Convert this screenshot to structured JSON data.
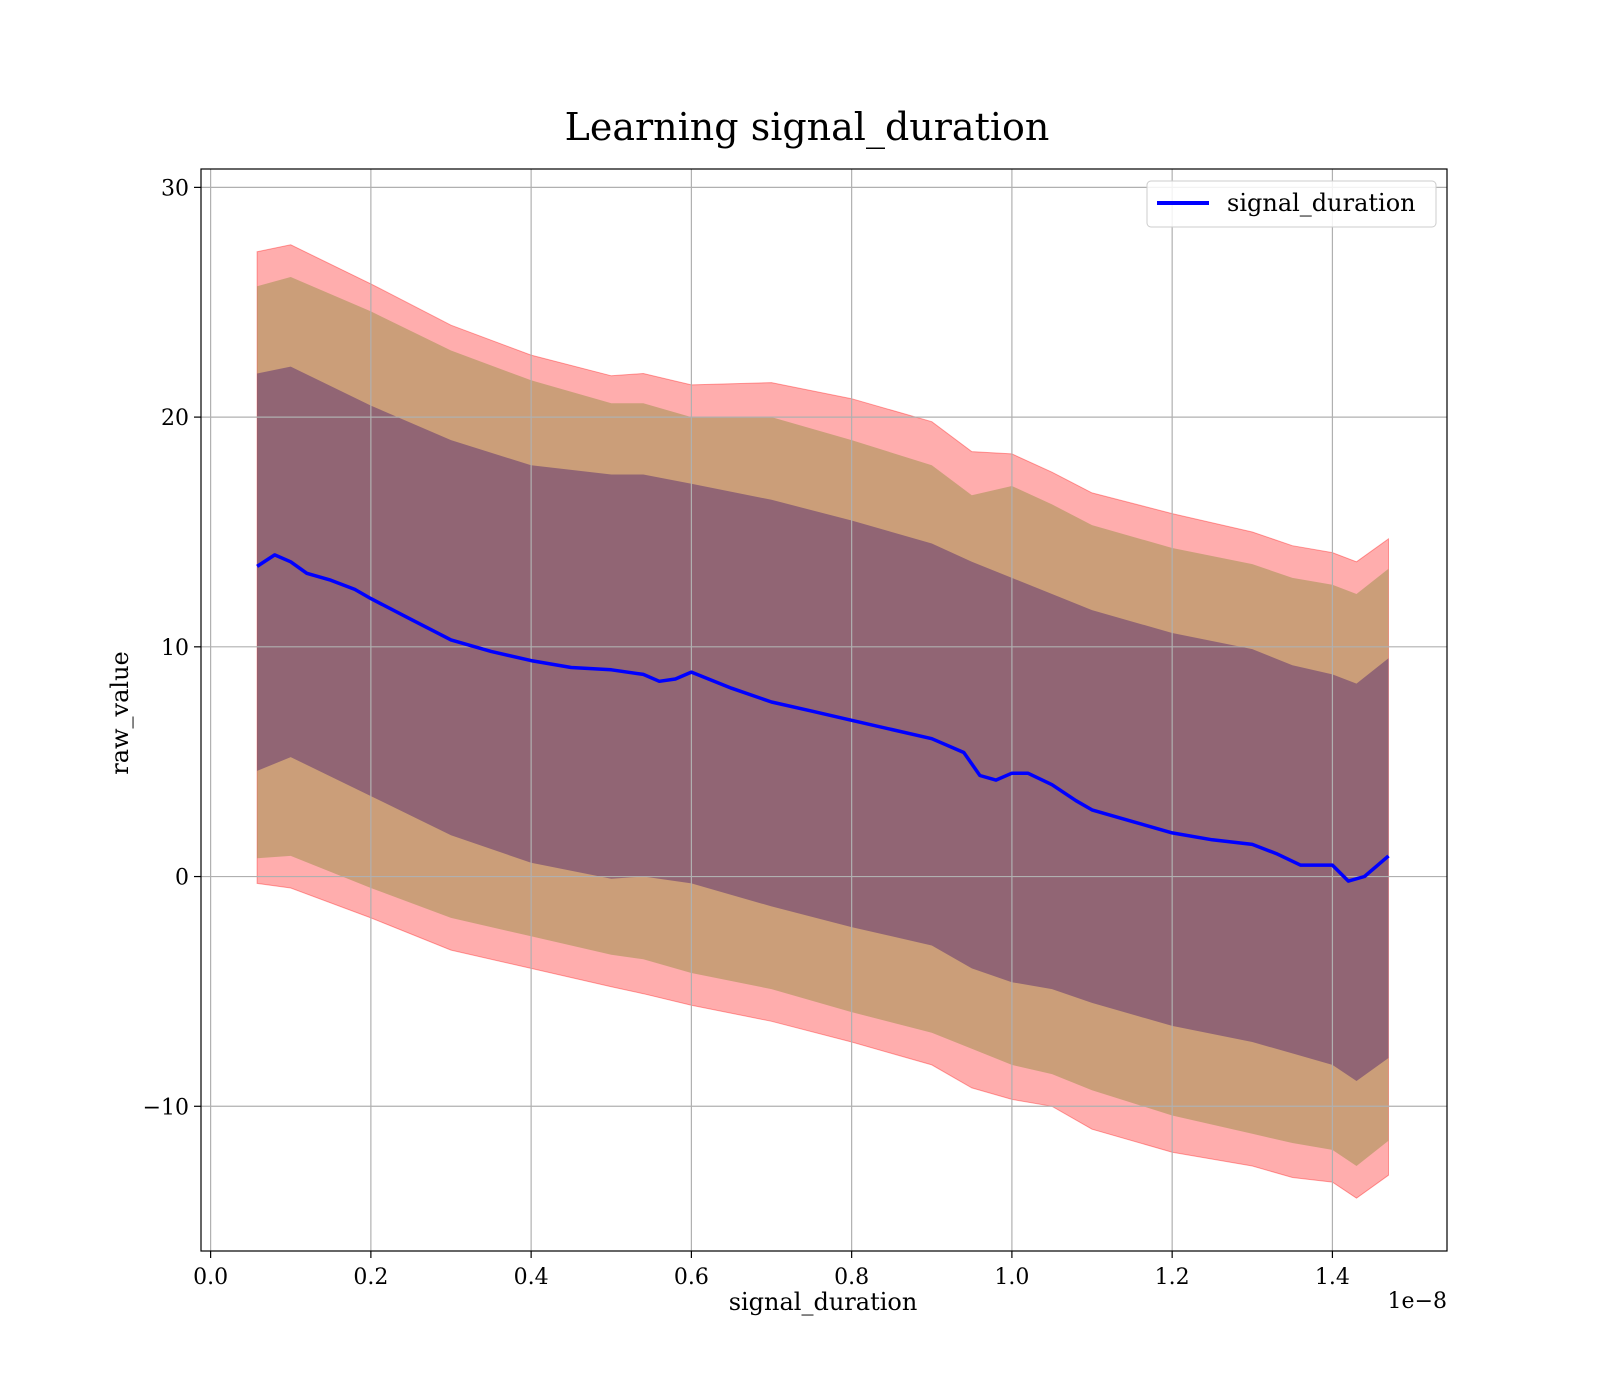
{
  "chart_data": {
    "type": "line",
    "title": "Learning signal_duration",
    "xlabel": "signal_duration",
    "ylabel": "raw_value",
    "x_offset_label": "1e−8",
    "xlim": [
      -0.012,
      1.543
    ],
    "ylim": [
      -16.3,
      30.8
    ],
    "x_ticks": [
      0.0,
      0.2,
      0.4,
      0.6,
      0.8,
      1.0,
      1.2,
      1.4
    ],
    "x_tick_labels": [
      "0.0",
      "0.2",
      "0.4",
      "0.6",
      "0.8",
      "1.0",
      "1.2",
      "1.4"
    ],
    "y_ticks": [
      -10,
      0,
      10,
      20,
      30
    ],
    "y_tick_labels": [
      "−10",
      "0",
      "10",
      "20",
      "30"
    ],
    "grid": true,
    "legend": {
      "position": "top-right",
      "entries": [
        "signal_duration"
      ]
    },
    "colors": {
      "line": "#0000ff",
      "band_outer": "#ff0000",
      "band_middle": "#8b8b3a",
      "band_inner": "#4b1f6f"
    },
    "series": [
      {
        "name": "signal_duration",
        "x": [
          0.058,
          0.08,
          0.1,
          0.12,
          0.15,
          0.18,
          0.2,
          0.25,
          0.3,
          0.35,
          0.4,
          0.45,
          0.5,
          0.54,
          0.56,
          0.58,
          0.6,
          0.65,
          0.7,
          0.75,
          0.8,
          0.85,
          0.9,
          0.94,
          0.96,
          0.98,
          1.0,
          1.02,
          1.05,
          1.08,
          1.1,
          1.15,
          1.2,
          1.25,
          1.3,
          1.33,
          1.36,
          1.4,
          1.42,
          1.44,
          1.47
        ],
        "y": [
          13.5,
          14.0,
          13.7,
          13.2,
          12.9,
          12.5,
          12.1,
          11.2,
          10.3,
          9.8,
          9.4,
          9.1,
          9.0,
          8.8,
          8.5,
          8.6,
          8.9,
          8.2,
          7.6,
          7.2,
          6.8,
          6.4,
          6.0,
          5.4,
          4.4,
          4.2,
          4.5,
          4.5,
          4.0,
          3.3,
          2.9,
          2.4,
          1.9,
          1.6,
          1.4,
          1.0,
          0.5,
          0.5,
          -0.2,
          0.0,
          0.9
        ]
      }
    ],
    "bands": {
      "x": [
        0.058,
        0.1,
        0.2,
        0.3,
        0.4,
        0.5,
        0.54,
        0.6,
        0.7,
        0.8,
        0.9,
        0.95,
        1.0,
        1.05,
        1.1,
        1.2,
        1.3,
        1.35,
        1.4,
        1.43,
        1.47
      ],
      "outer_upper": [
        27.2,
        27.5,
        25.8,
        24.0,
        22.7,
        21.8,
        21.9,
        21.4,
        21.5,
        20.8,
        19.8,
        18.5,
        18.4,
        17.6,
        16.7,
        15.8,
        15.0,
        14.4,
        14.1,
        13.7,
        14.7
      ],
      "outer_lower": [
        -0.3,
        -0.5,
        -1.8,
        -3.2,
        -4.0,
        -4.8,
        -5.1,
        -5.6,
        -6.3,
        -7.2,
        -8.2,
        -9.2,
        -9.7,
        -10.0,
        -11.0,
        -12.0,
        -12.6,
        -13.1,
        -13.3,
        -14.0,
        -13.0
      ],
      "middle_upper": [
        25.7,
        26.1,
        24.6,
        22.9,
        21.6,
        20.6,
        20.6,
        20.0,
        20.0,
        19.0,
        17.9,
        16.6,
        17.0,
        16.2,
        15.3,
        14.3,
        13.6,
        13.0,
        12.7,
        12.3,
        13.4
      ],
      "middle_lower": [
        0.8,
        0.9,
        -0.5,
        -1.8,
        -2.6,
        -3.4,
        -3.6,
        -4.2,
        -4.9,
        -5.9,
        -6.8,
        -7.5,
        -8.2,
        -8.6,
        -9.3,
        -10.4,
        -11.2,
        -11.6,
        -11.9,
        -12.6,
        -11.5
      ],
      "inner_upper": [
        21.9,
        22.2,
        20.5,
        19.0,
        17.9,
        17.5,
        17.5,
        17.1,
        16.4,
        15.5,
        14.5,
        13.7,
        13.0,
        12.3,
        11.6,
        10.6,
        9.9,
        9.2,
        8.8,
        8.4,
        9.5
      ],
      "inner_lower": [
        4.6,
        5.2,
        3.5,
        1.8,
        0.6,
        -0.1,
        0.0,
        -0.3,
        -1.3,
        -2.2,
        -3.0,
        -4.0,
        -4.6,
        -4.9,
        -5.5,
        -6.5,
        -7.2,
        -7.7,
        -8.2,
        -8.9,
        -7.9
      ]
    }
  }
}
